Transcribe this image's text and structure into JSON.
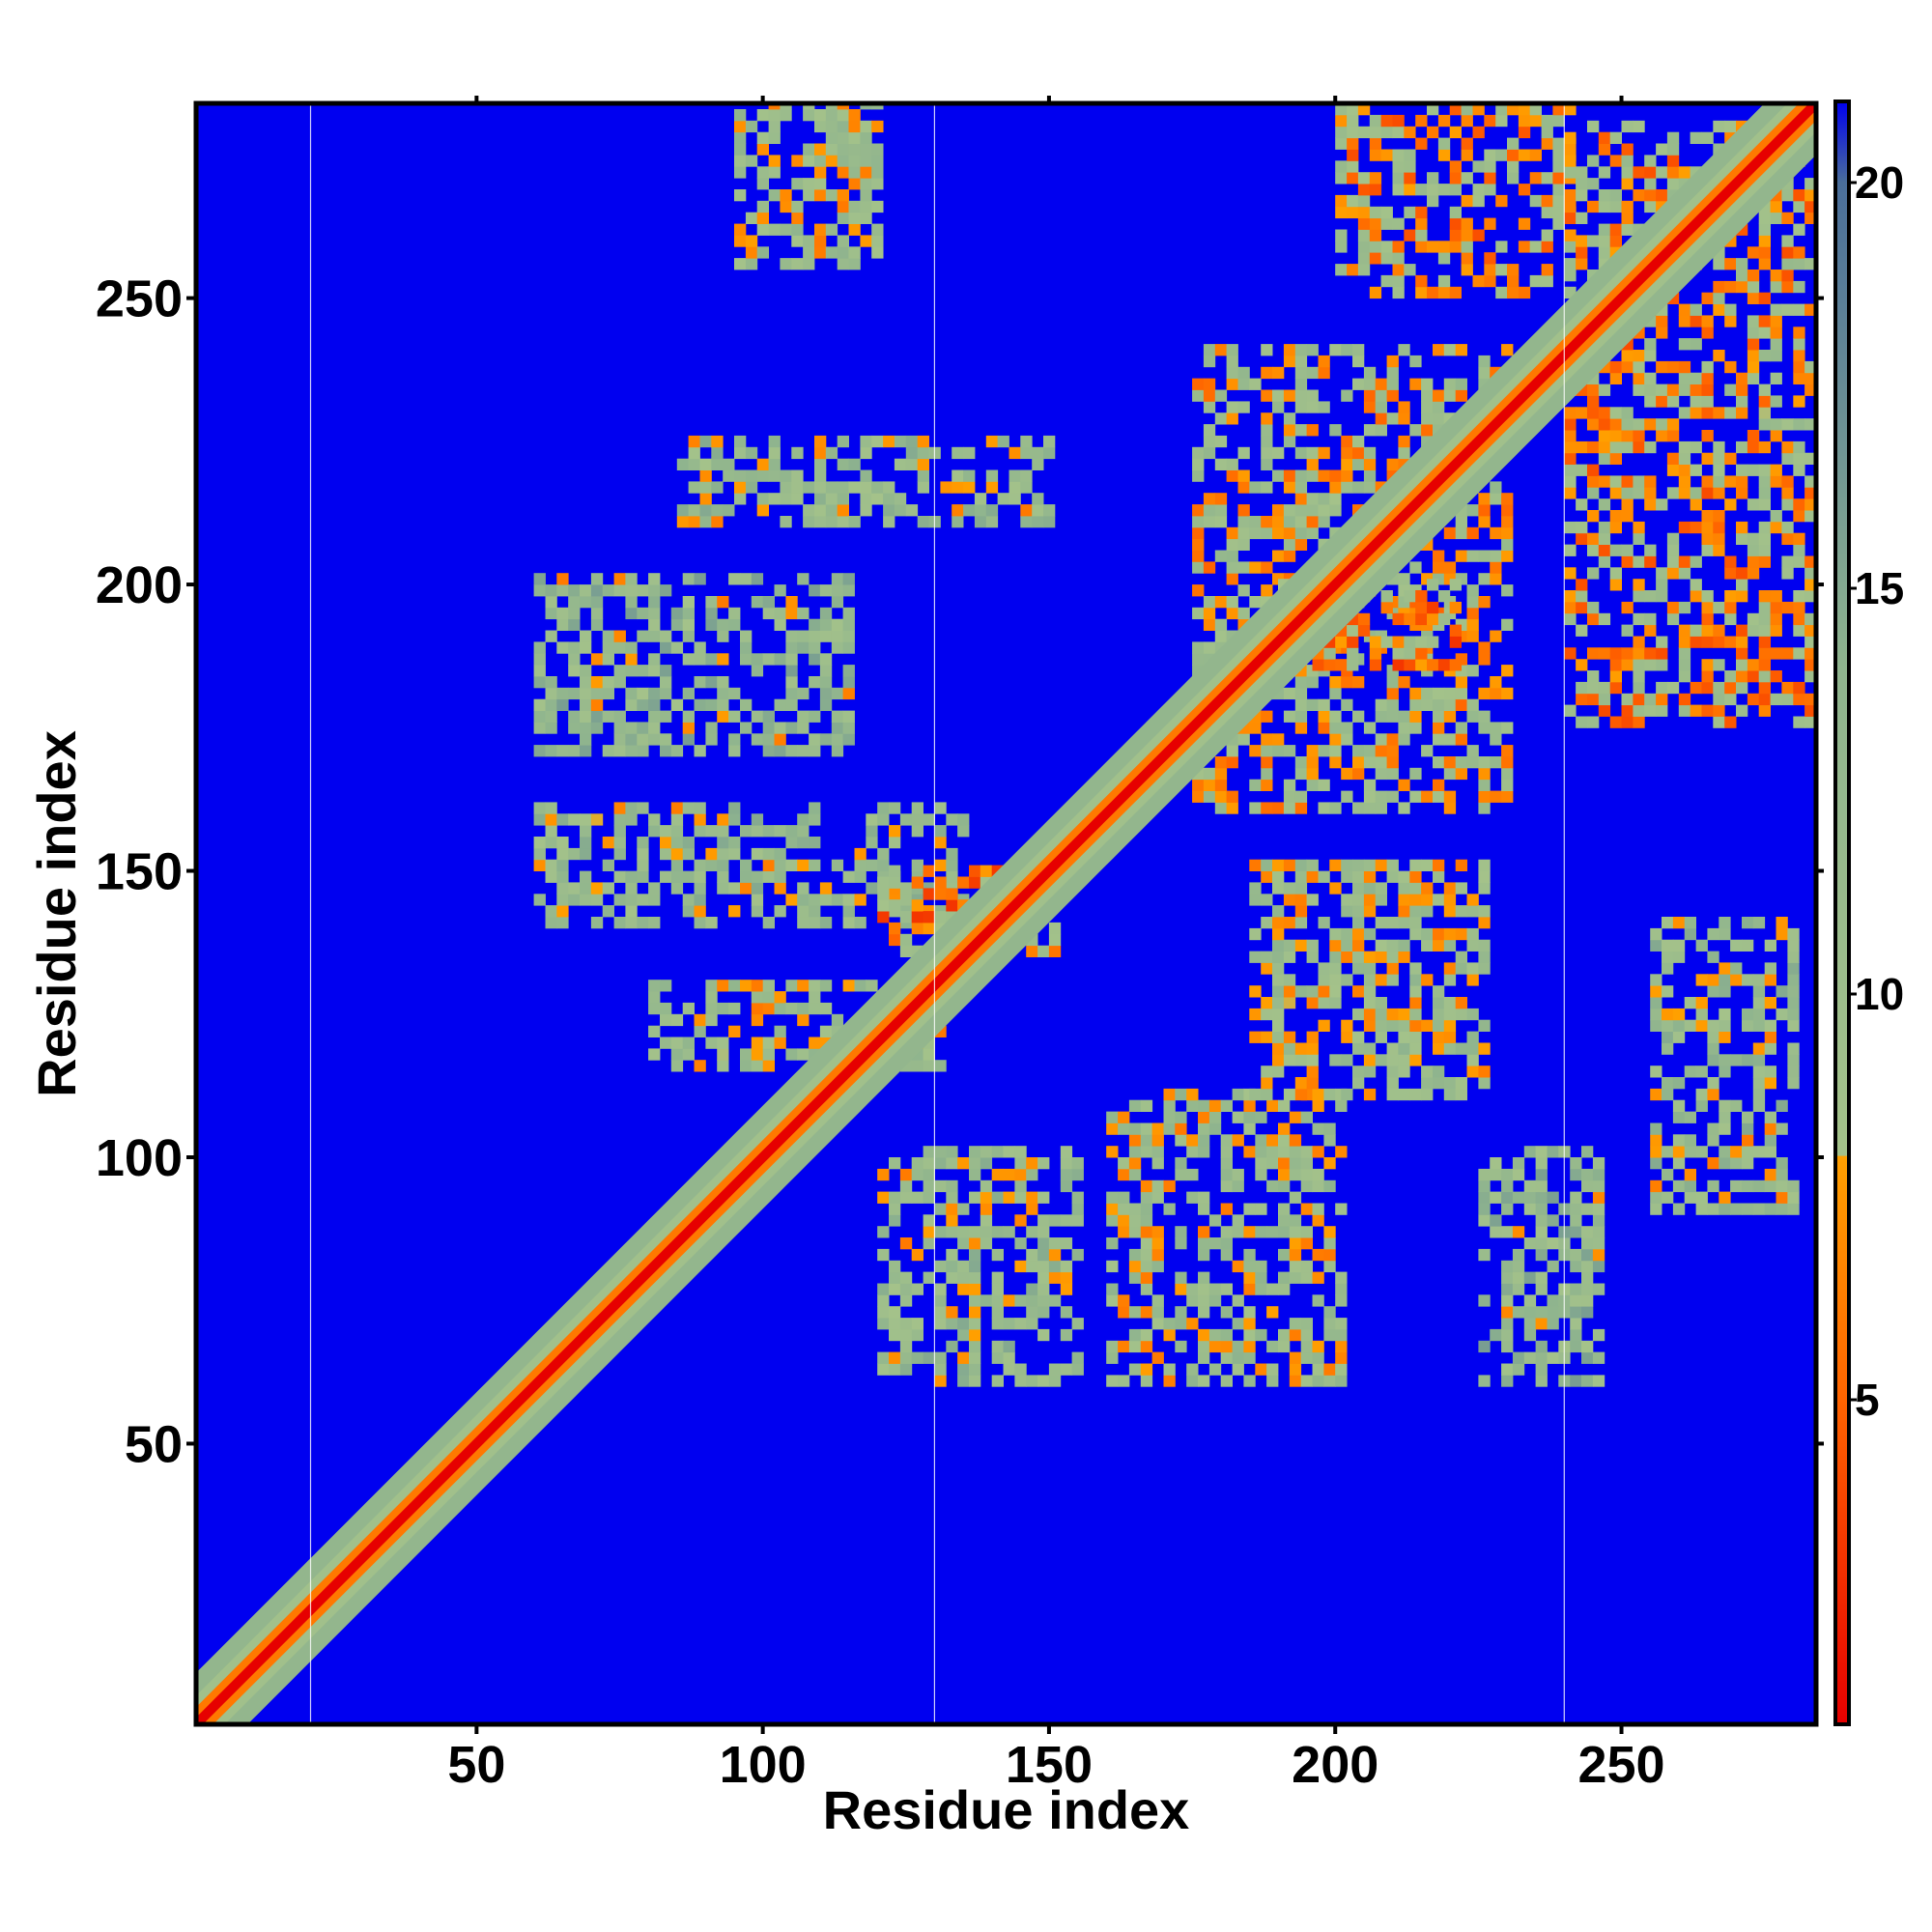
{
  "chart_data": {
    "type": "heatmap",
    "title": "",
    "xlabel": "Residue index",
    "ylabel": "Residue index",
    "xlim": [
      1,
      284
    ],
    "ylim": [
      1,
      284
    ],
    "x_ticks": [
      50,
      100,
      150,
      200,
      250
    ],
    "y_ticks": [
      50,
      100,
      150,
      200,
      250
    ],
    "grid": false,
    "colorbar": {
      "range": [
        1,
        21
      ],
      "ticks": [
        5,
        10,
        15,
        20
      ],
      "stops": [
        {
          "value": 1,
          "color": "#e60000"
        },
        {
          "value": 5,
          "color": "#ff6400"
        },
        {
          "value": 8,
          "color": "#ffa000"
        },
        {
          "value": 8.01,
          "color": "#a4c28a"
        },
        {
          "value": 14,
          "color": "#8fb48e"
        },
        {
          "value": 20,
          "color": "#4a6e9a"
        },
        {
          "value": 21,
          "color": "#0000f0"
        }
      ]
    },
    "background_value": 21,
    "background_color": "#0000f0",
    "segment_boundaries": [
      21,
      130,
      240
    ],
    "matrix_description_series": [
      {
        "name": "diagonal",
        "segments": [
          [
            1,
            284
          ]
        ]
      }
    ],
    "contact_bands": [
      {
        "x": [
          80,
          130
        ],
        "y": [
          115,
          130
        ],
        "value": 10
      },
      {
        "x": [
          60,
          135
        ],
        "y": [
          140,
          160
        ],
        "value": 11
      },
      {
        "x": [
          60,
          115
        ],
        "y": [
          170,
          200
        ],
        "value": 12
      },
      {
        "x": [
          85,
          150
        ],
        "y": [
          210,
          225
        ],
        "value": 11
      },
      {
        "x": [
          95,
          120
        ],
        "y": [
          255,
          283
        ],
        "value": 10
      },
      {
        "x": [
          120,
          155
        ],
        "y": [
          60,
          100
        ],
        "value": 11
      },
      {
        "x": [
          160,
          200
        ],
        "y": [
          60,
          110
        ],
        "value": 10
      },
      {
        "x": [
          185,
          225
        ],
        "y": [
          110,
          150
        ],
        "value": 10
      },
      {
        "x": [
          175,
          230
        ],
        "y": [
          160,
          240
        ],
        "value": 9
      },
      {
        "x": [
          200,
          240
        ],
        "y": [
          250,
          283
        ],
        "value": 8
      },
      {
        "x": [
          240,
          283
        ],
        "y": [
          175,
          280
        ],
        "value": 8
      },
      {
        "x": [
          255,
          280
        ],
        "y": [
          90,
          140
        ],
        "value": 11
      },
      {
        "x": [
          225,
          245
        ],
        "y": [
          60,
          100
        ],
        "value": 12
      },
      {
        "x": [
          190,
          220
        ],
        "y": [
          185,
          200
        ],
        "value": 7
      },
      {
        "x": [
          120,
          150
        ],
        "y": [
          135,
          150
        ],
        "value": 7
      }
    ]
  }
}
